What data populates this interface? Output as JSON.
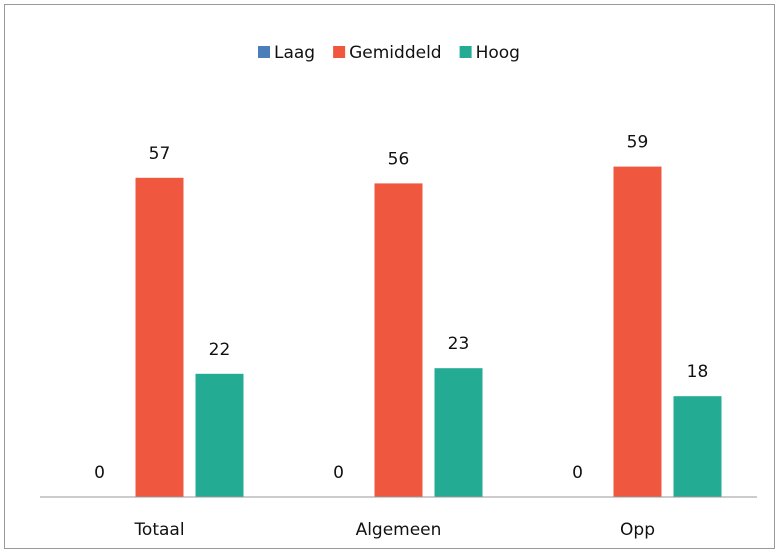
{
  "chart_data": {
    "type": "bar",
    "categories": [
      "Totaal",
      "Algemeen",
      "Opp"
    ],
    "series": [
      {
        "name": "Laag",
        "color": "#4a7ebb",
        "values": [
          0,
          0,
          0
        ]
      },
      {
        "name": "Gemiddeld",
        "color": "#f0573f",
        "values": [
          57,
          56,
          59
        ]
      },
      {
        "name": "Hoog",
        "color": "#24ab94",
        "values": [
          22,
          23,
          18
        ]
      }
    ],
    "ylim": [
      0,
      70
    ],
    "legend": "top"
  }
}
